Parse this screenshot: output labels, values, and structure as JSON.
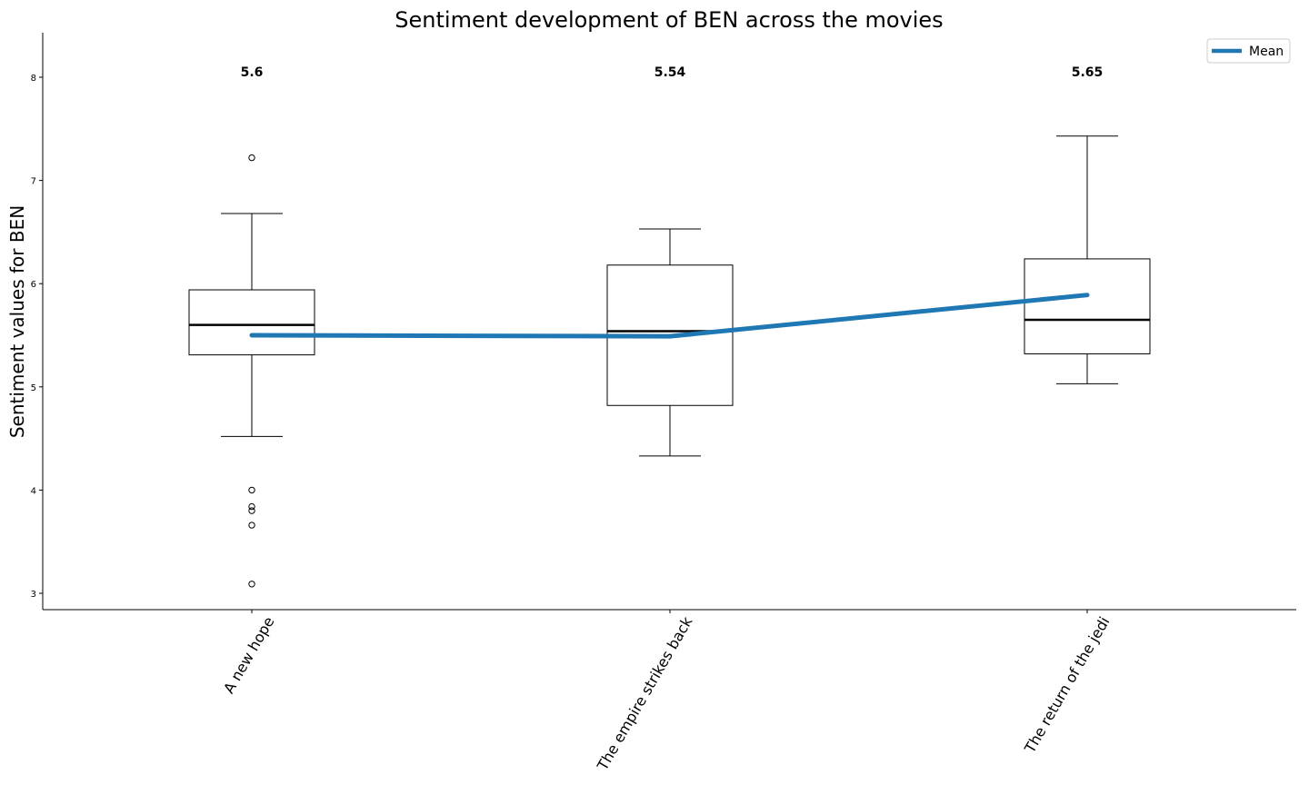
{
  "chart_data": {
    "type": "box",
    "title": "Sentiment development of BEN across the movies",
    "xlabel": "",
    "ylabel": "Sentiment values for BEN",
    "ylim": [
      2.85,
      8.43
    ],
    "yticks": [
      3,
      4,
      5,
      6,
      7,
      8
    ],
    "categories": [
      "A new hope",
      "The empire strikes back",
      "The return of the  jedi"
    ],
    "boxes": [
      {
        "category": "A new hope",
        "whisker_low": 4.52,
        "q1": 5.31,
        "median": 5.6,
        "q3": 5.94,
        "whisker_high": 6.68,
        "outliers": [
          7.22,
          4.0,
          3.84,
          3.8,
          3.66,
          3.09
        ]
      },
      {
        "category": "The empire strikes back",
        "whisker_low": 4.33,
        "q1": 4.82,
        "median": 5.54,
        "q3": 6.18,
        "whisker_high": 6.53,
        "outliers": []
      },
      {
        "category": "The return of the  jedi",
        "whisker_low": 5.03,
        "q1": 5.32,
        "median": 5.65,
        "q3": 6.24,
        "whisker_high": 7.43,
        "outliers": []
      }
    ],
    "median_labels": [
      "5.6",
      "5.54",
      "5.65"
    ],
    "series": [
      {
        "name": "Mean",
        "type": "line",
        "values": [
          5.5,
          5.49,
          5.89
        ],
        "color": "#1f77b4"
      }
    ],
    "legend": {
      "position": "top-right",
      "entries": [
        "Mean"
      ]
    },
    "grid": false
  }
}
